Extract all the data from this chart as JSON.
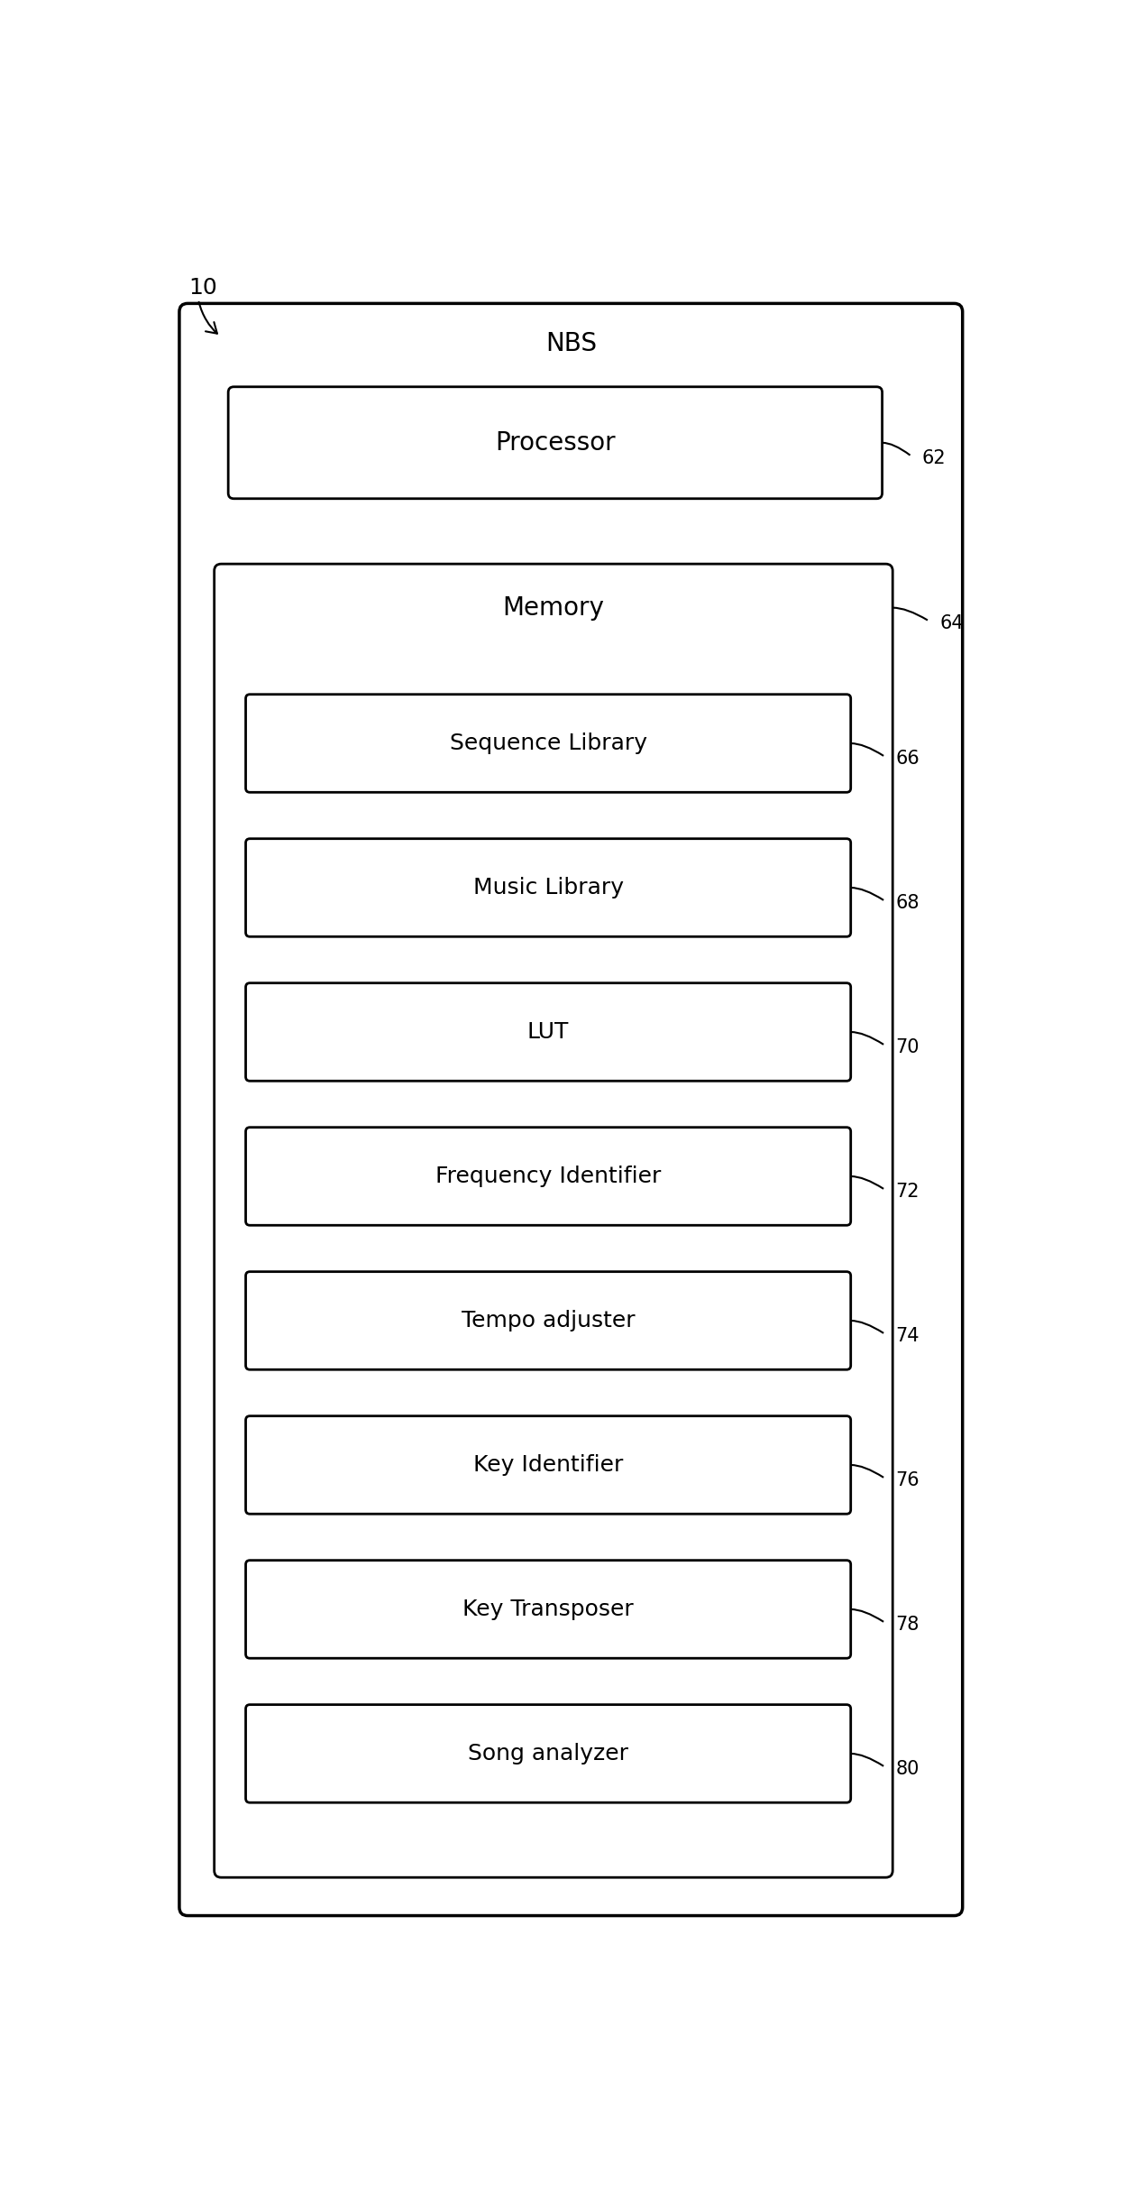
{
  "fig_label": "10",
  "outer_box_label": "NBS",
  "processor_label": "Processor",
  "processor_ref": "62",
  "memory_label": "Memory",
  "memory_ref": "64",
  "inner_boxes": [
    {
      "label": "Sequence Library",
      "ref": "66"
    },
    {
      "label": "Music Library",
      "ref": "68"
    },
    {
      "label": "LUT",
      "ref": "70"
    },
    {
      "label": "Frequency Identifier",
      "ref": "72"
    },
    {
      "label": "Tempo adjuster",
      "ref": "74"
    },
    {
      "label": "Key Identifier",
      "ref": "76"
    },
    {
      "label": "Key Transposer",
      "ref": "78"
    },
    {
      "label": "Song analyzer",
      "ref": "80"
    }
  ],
  "bg_color": "#ffffff",
  "box_edge_color": "#000000",
  "text_color": "#000000",
  "font_size_nbs": 20,
  "font_size_proc": 20,
  "font_size_mem": 20,
  "font_size_inner": 18,
  "font_size_ref": 15,
  "font_size_fig": 16
}
